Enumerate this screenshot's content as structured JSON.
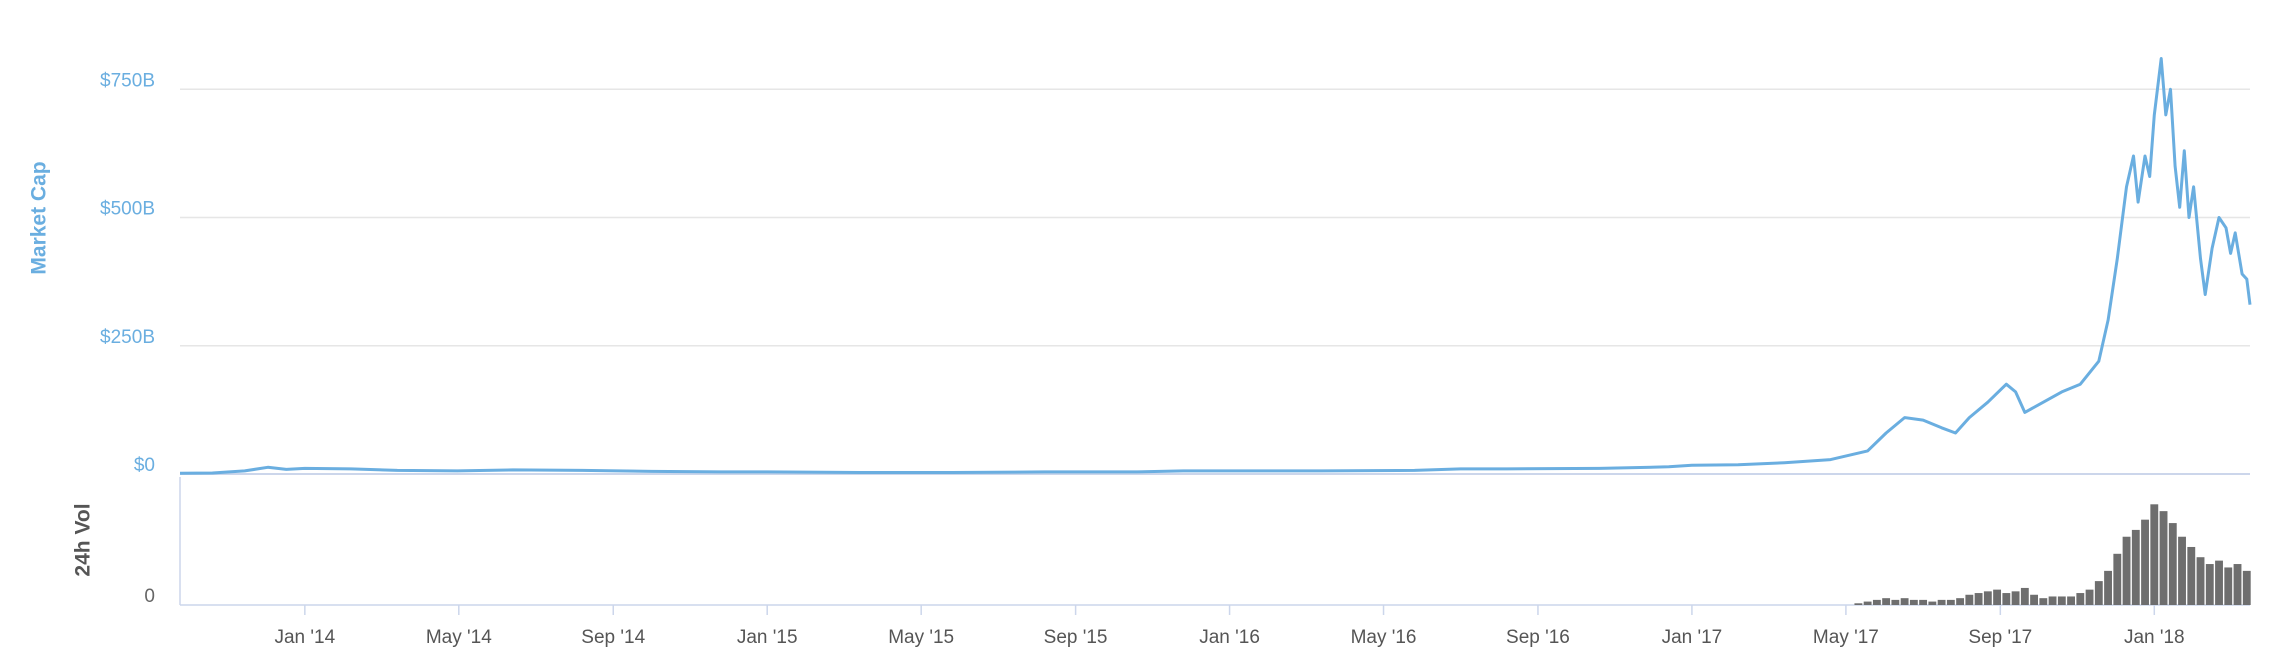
{
  "chart_data": [
    {
      "type": "line",
      "y_label": "Market Cap",
      "color": "#6aaee0",
      "grid": true,
      "xlim": [
        2013.73,
        2018.207
      ],
      "ylim": [
        0,
        850
      ],
      "yticks": [
        {
          "value": 0,
          "label": "$0"
        },
        {
          "value": 250,
          "label": "$250B"
        },
        {
          "value": 500,
          "label": "$500B"
        },
        {
          "value": 750,
          "label": "$750B"
        }
      ],
      "x": [
        2013.73,
        2013.8,
        2013.87,
        2013.92,
        2013.96,
        2014.0,
        2014.1,
        2014.2,
        2014.33,
        2014.45,
        2014.6,
        2014.75,
        2014.9,
        2015.0,
        2015.2,
        2015.4,
        2015.6,
        2015.8,
        2015.9,
        2016.0,
        2016.2,
        2016.4,
        2016.5,
        2016.6,
        2016.8,
        2016.95,
        2017.0,
        2017.1,
        2017.2,
        2017.3,
        2017.38,
        2017.42,
        2017.46,
        2017.5,
        2017.54,
        2017.57,
        2017.6,
        2017.64,
        2017.68,
        2017.7,
        2017.72,
        2017.76,
        2017.8,
        2017.84,
        2017.88,
        2017.9,
        2017.92,
        2017.94,
        2017.955,
        2017.965,
        2017.98,
        2017.99,
        2018.0,
        2018.015,
        2018.025,
        2018.035,
        2018.045,
        2018.055,
        2018.065,
        2018.075,
        2018.085,
        2018.1,
        2018.11,
        2018.125,
        2018.14,
        2018.155,
        2018.165,
        2018.175,
        2018.19,
        2018.2,
        2018.207
      ],
      "values": [
        1.5,
        2,
        6,
        13,
        9,
        11,
        10,
        7,
        6,
        8,
        7,
        5,
        4,
        4,
        3,
        3,
        4,
        4,
        6,
        6,
        6,
        7,
        10,
        10,
        11,
        14,
        17,
        18,
        22,
        28,
        45,
        80,
        110,
        105,
        90,
        80,
        110,
        140,
        175,
        160,
        120,
        140,
        160,
        175,
        220,
        300,
        420,
        560,
        620,
        530,
        620,
        580,
        700,
        810,
        700,
        750,
        600,
        520,
        630,
        500,
        560,
        420,
        350,
        440,
        500,
        480,
        430,
        470,
        390,
        380,
        330
      ]
    },
    {
      "type": "bar",
      "y_label": "24h Vol",
      "color": "#6e6e6e",
      "xlim": [
        2013.73,
        2018.207
      ],
      "ylim": [
        0,
        75
      ],
      "yticks": [
        0
      ],
      "xticks": [
        {
          "value": 2014.0,
          "label": "Jan '14"
        },
        {
          "value": 2014.333,
          "label": "May '14"
        },
        {
          "value": 2014.667,
          "label": "Sep '14"
        },
        {
          "value": 2015.0,
          "label": "Jan '15"
        },
        {
          "value": 2015.333,
          "label": "May '15"
        },
        {
          "value": 2015.667,
          "label": "Sep '15"
        },
        {
          "value": 2016.0,
          "label": "Jan '16"
        },
        {
          "value": 2016.333,
          "label": "May '16"
        },
        {
          "value": 2016.667,
          "label": "Sep '16"
        },
        {
          "value": 2017.0,
          "label": "Jan '17"
        },
        {
          "value": 2017.333,
          "label": "May '17"
        },
        {
          "value": 2017.667,
          "label": "Sep '17"
        },
        {
          "value": 2018.0,
          "label": "Jan '18"
        }
      ],
      "x": [
        2017.36,
        2017.38,
        2017.4,
        2017.42,
        2017.44,
        2017.46,
        2017.48,
        2017.5,
        2017.52,
        2017.54,
        2017.56,
        2017.58,
        2017.6,
        2017.62,
        2017.64,
        2017.66,
        2017.68,
        2017.7,
        2017.72,
        2017.74,
        2017.76,
        2017.78,
        2017.8,
        2017.82,
        2017.84,
        2017.86,
        2017.88,
        2017.9,
        2017.92,
        2017.94,
        2017.96,
        2017.98,
        2018.0,
        2018.02,
        2018.04,
        2018.06,
        2018.08,
        2018.1,
        2018.12,
        2018.14,
        2018.16,
        2018.18,
        2018.2
      ],
      "values": [
        1,
        2,
        3,
        4,
        3,
        4,
        3,
        3,
        2,
        3,
        3,
        4,
        6,
        7,
        8,
        9,
        7,
        8,
        10,
        6,
        4,
        5,
        5,
        5,
        7,
        9,
        14,
        20,
        30,
        40,
        44,
        50,
        59,
        55,
        48,
        40,
        34,
        28,
        24,
        26,
        22,
        24,
        20
      ]
    }
  ]
}
